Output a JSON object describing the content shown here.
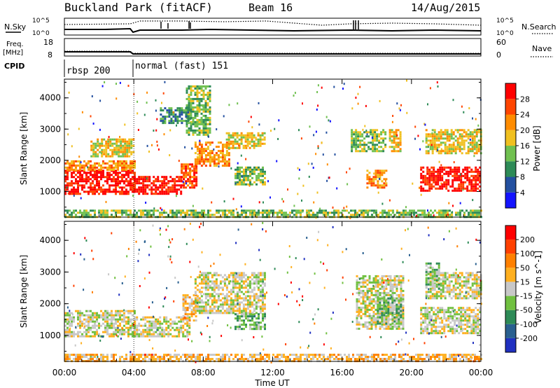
{
  "header": {
    "station": "Buckland Park (fitACF)",
    "beam": "Beam 16",
    "date": "14/Aug/2015"
  },
  "summary": {
    "nsky_label": "N.Sky",
    "nsearch_label": "N.Search",
    "freq_label_1": "Freq.",
    "freq_label_2": "[MHz]",
    "nave_label": "Nave",
    "cpid_label": "CPID",
    "noise_ticks_left": [
      "10^5",
      "10^0"
    ],
    "noise_ticks_right": [
      "10^5",
      "10^0"
    ],
    "freq_ticks": [
      "18",
      "8"
    ],
    "nave_ticks": [
      "60",
      "0"
    ],
    "cpid_segments": [
      {
        "start_hour": 0,
        "label": "rbsp 200"
      },
      {
        "start_hour": 4,
        "label": "normal (fast) 151"
      }
    ]
  },
  "chart_data": [
    {
      "type": "heatmap",
      "name": "power",
      "x_axis": {
        "label": "Time UT",
        "range_hours": [
          0,
          24
        ],
        "tick_labels": [
          "00:00",
          "04:00",
          "08:00",
          "12:00",
          "16:00",
          "20:00",
          "00:00"
        ]
      },
      "y_axis": {
        "label": "Slant Range [km]",
        "range": [
          180,
          4600
        ],
        "ticks": [
          1000,
          2000,
          3000,
          4000
        ]
      },
      "colorbar": {
        "label": "Power [dB]",
        "ticks": [
          "4",
          "8",
          "12",
          "16",
          "20",
          "24",
          "28"
        ],
        "colors": [
          "#1414ff",
          "#2450a0",
          "#2e8b57",
          "#70c050",
          "#f0c020",
          "#ff8c00",
          "#ff4500",
          "#ff0000"
        ]
      },
      "regions": [
        {
          "t0": 0.0,
          "t1": 4.0,
          "r0": 950,
          "r1": 1700,
          "level": 7
        },
        {
          "t0": 0.0,
          "t1": 4.0,
          "r0": 1700,
          "r1": 2000,
          "level": 5
        },
        {
          "t0": 4.0,
          "t1": 6.7,
          "r0": 900,
          "r1": 1500,
          "level": 7
        },
        {
          "t0": 6.7,
          "t1": 7.6,
          "r0": 1100,
          "r1": 1900,
          "level": 6
        },
        {
          "t0": 7.5,
          "t1": 9.5,
          "r0": 1800,
          "r1": 2600,
          "level": 5
        },
        {
          "t0": 9.3,
          "t1": 11.5,
          "r0": 2400,
          "r1": 2900,
          "level": 4
        },
        {
          "t0": 9.8,
          "t1": 11.6,
          "r0": 1200,
          "r1": 1800,
          "level": 3
        },
        {
          "t0": 7.0,
          "t1": 8.4,
          "r0": 2800,
          "r1": 4400,
          "level": 3
        },
        {
          "t0": 1.5,
          "t1": 4.0,
          "r0": 2100,
          "r1": 2700,
          "level": 4
        },
        {
          "t0": 5.5,
          "t1": 7.2,
          "r0": 3200,
          "r1": 3700,
          "level": 2
        },
        {
          "t0": 16.5,
          "t1": 18.5,
          "r0": 2300,
          "r1": 3000,
          "level": 3
        },
        {
          "t0": 17.4,
          "t1": 18.6,
          "r0": 1100,
          "r1": 1700,
          "level": 5
        },
        {
          "t0": 18.7,
          "t1": 19.4,
          "r0": 2300,
          "r1": 3000,
          "level": 4
        },
        {
          "t0": 20.5,
          "t1": 24.0,
          "r0": 1000,
          "r1": 1800,
          "level": 7
        },
        {
          "t0": 20.8,
          "t1": 24.0,
          "r0": 2200,
          "r1": 3000,
          "level": 4
        },
        {
          "t0": 0.0,
          "t1": 24.0,
          "r0": 200,
          "r1": 420,
          "level": 3
        }
      ]
    },
    {
      "type": "heatmap",
      "name": "velocity",
      "x_axis": {
        "label": "Time UT",
        "range_hours": [
          0,
          24
        ],
        "tick_labels": [
          "00:00",
          "04:00",
          "08:00",
          "12:00",
          "16:00",
          "20:00",
          "00:00"
        ]
      },
      "y_axis": {
        "label": "Slant Range [km]",
        "range": [
          180,
          4600
        ],
        "ticks": [
          1000,
          2000,
          3000,
          4000
        ]
      },
      "colorbar": {
        "label": "Velocity [m s^-1]",
        "ticks": [
          "200",
          "100",
          "50",
          "15",
          "-15",
          "-50",
          "-100",
          "-200"
        ],
        "colors": [
          "#2030c0",
          "#2a6090",
          "#2e8b57",
          "#70c040",
          "#c8c8c8",
          "#ffb020",
          "#ff8000",
          "#ff4000",
          "#ff0000"
        ]
      },
      "regions": [
        {
          "t0": 0.0,
          "t1": 4.0,
          "r0": 950,
          "r1": 1800,
          "level": 4
        },
        {
          "t0": 4.0,
          "t1": 7.2,
          "r0": 1000,
          "r1": 1600,
          "level": 4
        },
        {
          "t0": 6.8,
          "t1": 7.6,
          "r0": 1500,
          "r1": 2300,
          "level": 5
        },
        {
          "t0": 7.5,
          "t1": 11.5,
          "r0": 1700,
          "r1": 3000,
          "level": 4
        },
        {
          "t0": 9.8,
          "t1": 11.6,
          "r0": 1200,
          "r1": 1700,
          "level": 3
        },
        {
          "t0": 16.8,
          "t1": 19.5,
          "r0": 1200,
          "r1": 2900,
          "level": 4
        },
        {
          "t0": 18.0,
          "t1": 19.4,
          "r0": 1400,
          "r1": 2200,
          "level": 3
        },
        {
          "t0": 20.5,
          "t1": 24.0,
          "r0": 1100,
          "r1": 1900,
          "level": 4
        },
        {
          "t0": 20.8,
          "t1": 24.0,
          "r0": 2200,
          "r1": 3000,
          "level": 4
        },
        {
          "t0": 20.8,
          "t1": 21.6,
          "r0": 2500,
          "r1": 3300,
          "level": 3
        },
        {
          "t0": 0.0,
          "t1": 24.0,
          "r0": 200,
          "r1": 420,
          "level": 5
        }
      ]
    }
  ]
}
